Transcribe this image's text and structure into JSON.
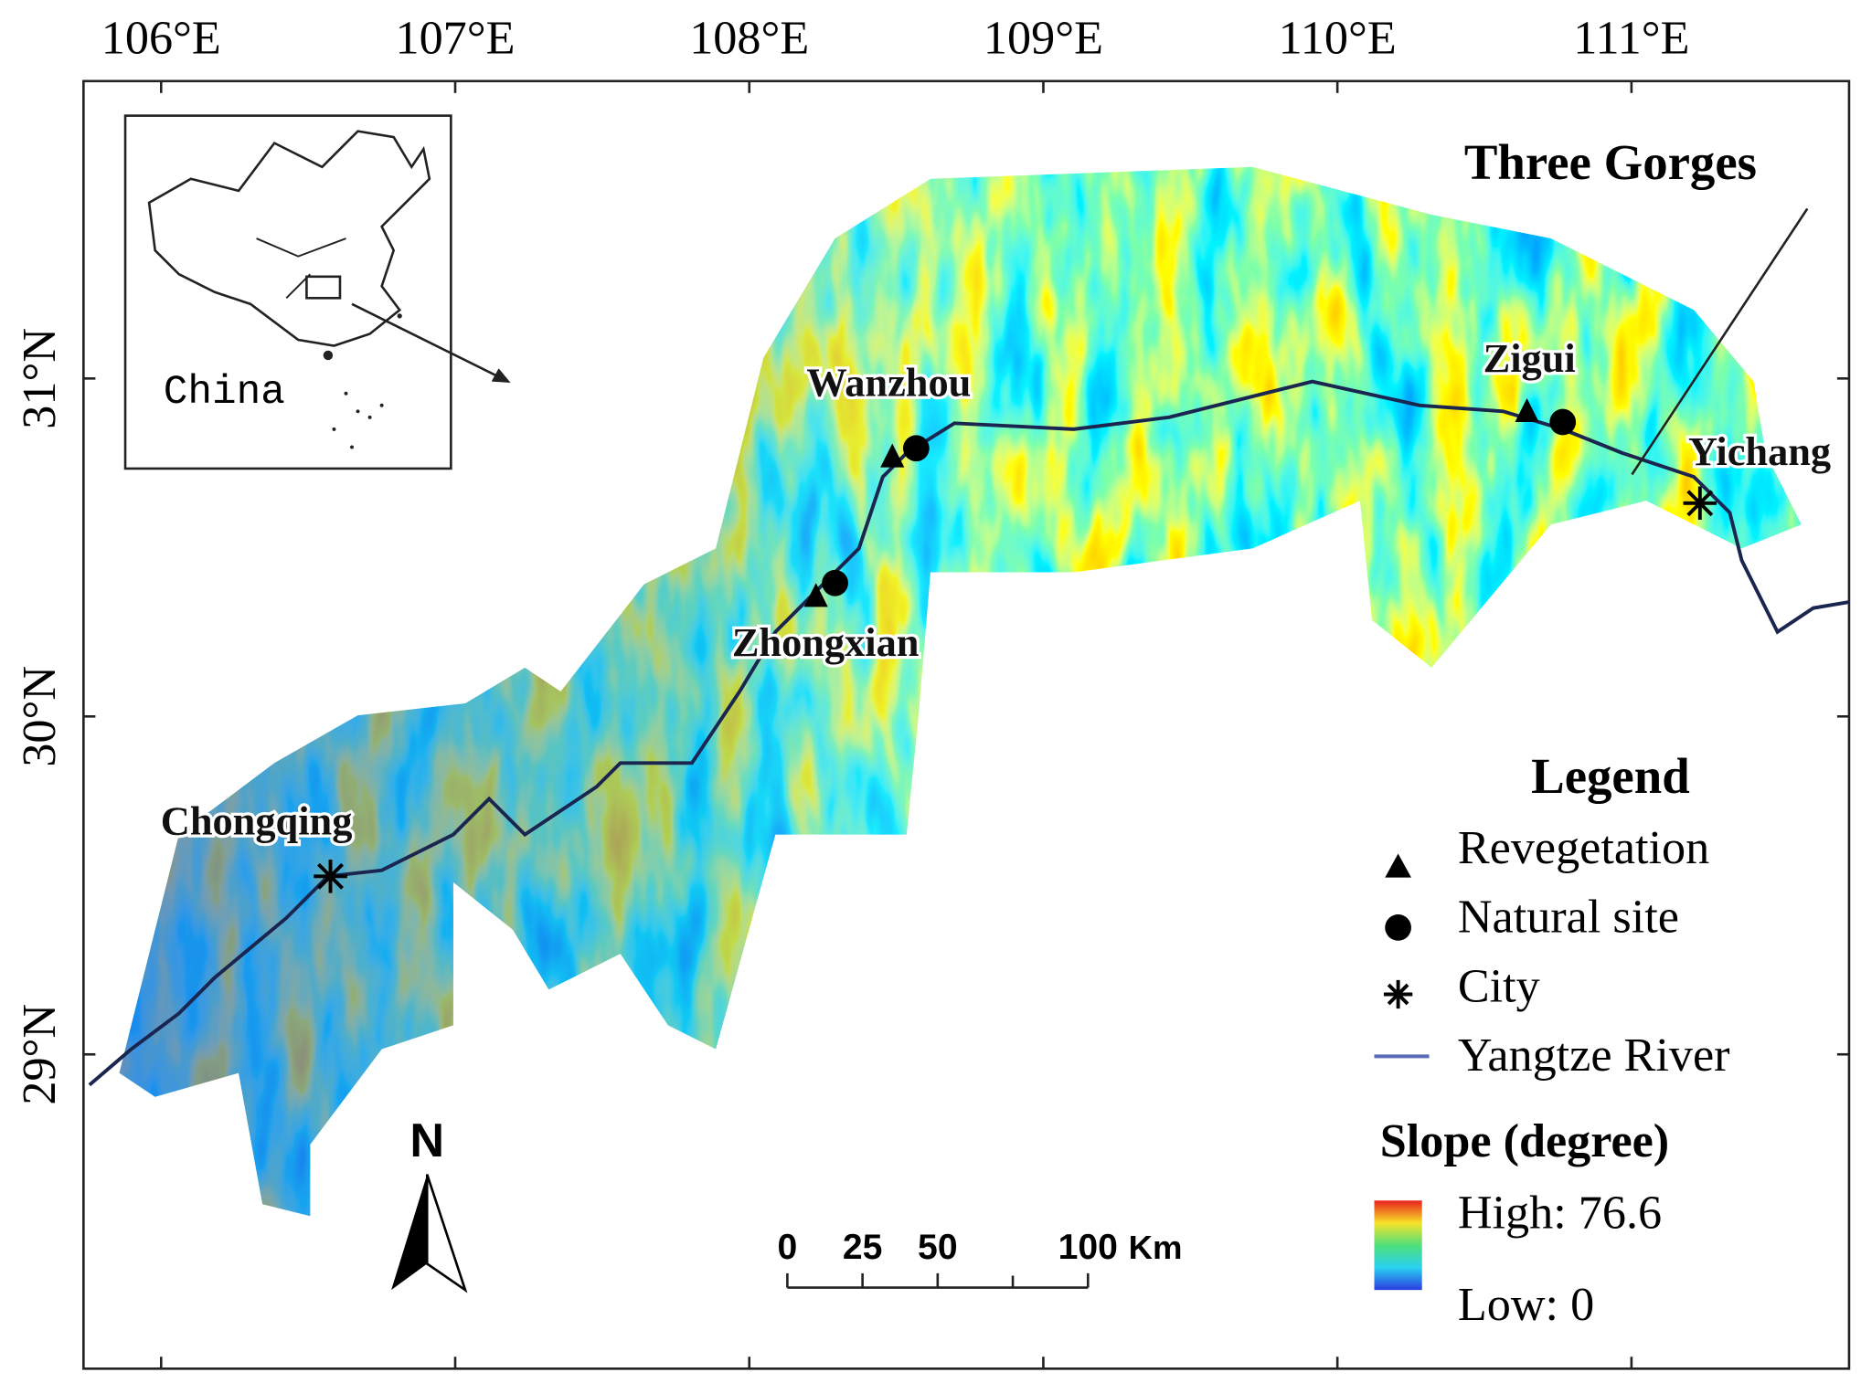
{
  "map": {
    "xlim": [
      105.736,
      111.74
    ],
    "ylim": [
      28.07,
      31.88
    ],
    "xticks": [
      {
        "value": 106,
        "label": "106°E"
      },
      {
        "value": 107,
        "label": "107°E"
      },
      {
        "value": 108,
        "label": "108°E"
      },
      {
        "value": 109,
        "label": "109°E"
      },
      {
        "value": 110,
        "label": "110°E"
      },
      {
        "value": 111,
        "label": "111°E"
      }
    ],
    "yticks": [
      {
        "value": 29,
        "label": "29°N"
      },
      {
        "value": 30,
        "label": "30°N"
      },
      {
        "value": 31,
        "label": "31°N"
      }
    ]
  },
  "inset": {
    "label": "China"
  },
  "annotation": "Three Gorges",
  "places": [
    "Wanzhou",
    "Zhongxian",
    "Zigui",
    "Chongqing",
    "Yichang"
  ],
  "north": "N",
  "legend": {
    "title": "Legend",
    "items": [
      "Revegetation",
      "Natural site",
      "City",
      "Yangtze River"
    ],
    "slope_title": "Slope (degree)",
    "high": "High: 76.6",
    "low": "Low: 0"
  },
  "scale_bar": {
    "ticks": [
      0,
      25,
      50,
      100
    ],
    "unit": "Km"
  }
}
